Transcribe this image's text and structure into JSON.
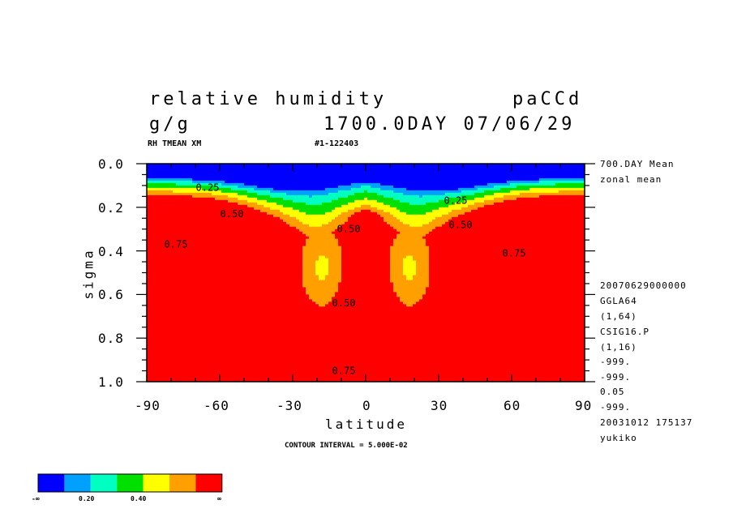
{
  "header": {
    "title": "relative humidity",
    "run_name": "paCCd",
    "units": "g/g",
    "time": "1700.0DAY 07/06/29",
    "subtitle_left": "RH TMEAN XM",
    "subtitle_id": "#1-122403"
  },
  "info_panel": {
    "top_lines": [
      "700.DAY Mean",
      "zonal mean"
    ],
    "bottom_lines": [
      "20070629000000",
      "GGLA64",
      "(1,64)",
      "CSIG16.P",
      "(1,16)",
      "-999.",
      "-999.",
      "0.05",
      "-999.",
      "20031012 175137",
      "yukiko"
    ]
  },
  "footer": {
    "contour_interval": "CONTOUR INTERVAL = 5.000E-02"
  },
  "colorbar": {
    "colors": [
      "#0000ff",
      "#00a0ff",
      "#00ffc0",
      "#00e000",
      "#ffff00",
      "#ffa000",
      "#ff0000"
    ],
    "labels": [
      "-∞",
      "0.20",
      "0.40",
      "∞"
    ]
  },
  "chart_data": {
    "type": "heatmap",
    "xlabel": "latitude",
    "ylabel": "sigma",
    "xlim": [
      -90,
      90
    ],
    "ylim": [
      1.0,
      0.0
    ],
    "x_ticks": [
      "-90",
      "-60",
      "-30",
      "0",
      "30",
      "60",
      "90"
    ],
    "y_ticks": [
      "0.0",
      "0.2",
      "0.4",
      "0.6",
      "0.8",
      "1.0"
    ],
    "contour_labels": [
      {
        "text": "0.25",
        "lat": -65,
        "sigma": 0.11
      },
      {
        "text": "0.25",
        "lat": 37,
        "sigma": 0.17
      },
      {
        "text": "0.50",
        "lat": -55,
        "sigma": 0.23
      },
      {
        "text": "0.50",
        "lat": -7,
        "sigma": 0.3
      },
      {
        "text": "0.50",
        "lat": -9,
        "sigma": 0.64
      },
      {
        "text": "0.50",
        "lat": 39,
        "sigma": 0.28
      },
      {
        "text": "0.75",
        "lat": -78,
        "sigma": 0.37
      },
      {
        "text": "0.75",
        "lat": 61,
        "sigma": 0.41
      },
      {
        "text": "0.75",
        "lat": -9,
        "sigma": 0.95
      }
    ],
    "color_levels": [
      0.1,
      0.2,
      0.3,
      0.4,
      0.5,
      0.6,
      0.7
    ],
    "grid": false
  }
}
